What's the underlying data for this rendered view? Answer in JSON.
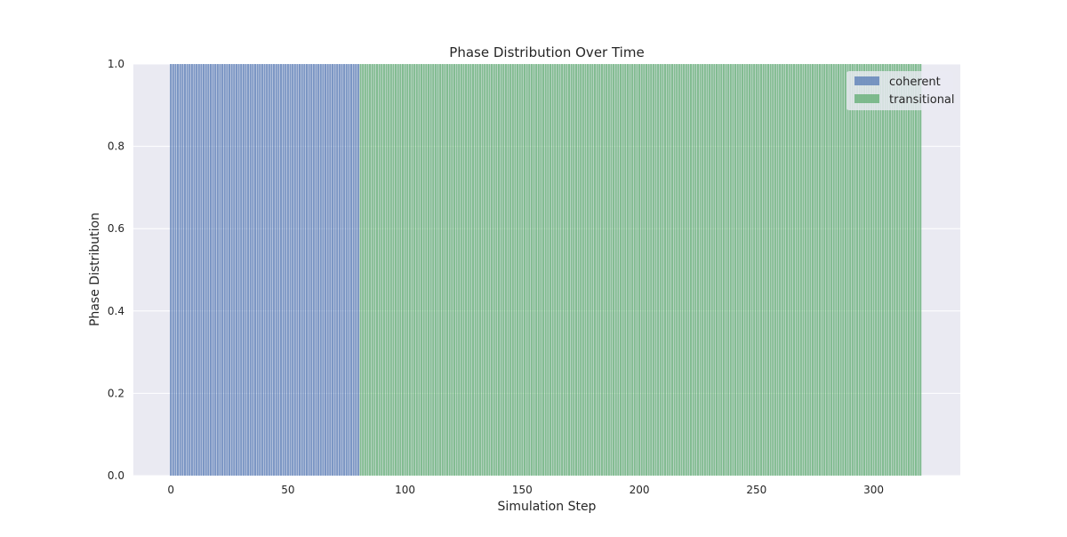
{
  "chart_data": {
    "type": "bar",
    "stacked": true,
    "title": "Phase Distribution Over Time",
    "xlabel": "Simulation Step",
    "ylabel": "Phase Distribution",
    "xlim": [
      -16,
      337
    ],
    "ylim": [
      0,
      1
    ],
    "x_ticks": [
      "0",
      "50",
      "100",
      "150",
      "200",
      "250",
      "300"
    ],
    "y_ticks": [
      "0.0",
      "0.2",
      "0.4",
      "0.6",
      "0.8",
      "1.0"
    ],
    "grid": true,
    "legend_position": "top-right",
    "background": "#eaeaf2",
    "x": {
      "start": 0,
      "end": 320,
      "step": 1
    },
    "series": [
      {
        "name": "coherent",
        "color": "#4c72b0",
        "value": 1.0,
        "x_range": [
          0,
          80
        ]
      },
      {
        "name": "transitional",
        "color": "#55a868",
        "value": 1.0,
        "x_range": [
          81,
          320
        ]
      }
    ]
  }
}
